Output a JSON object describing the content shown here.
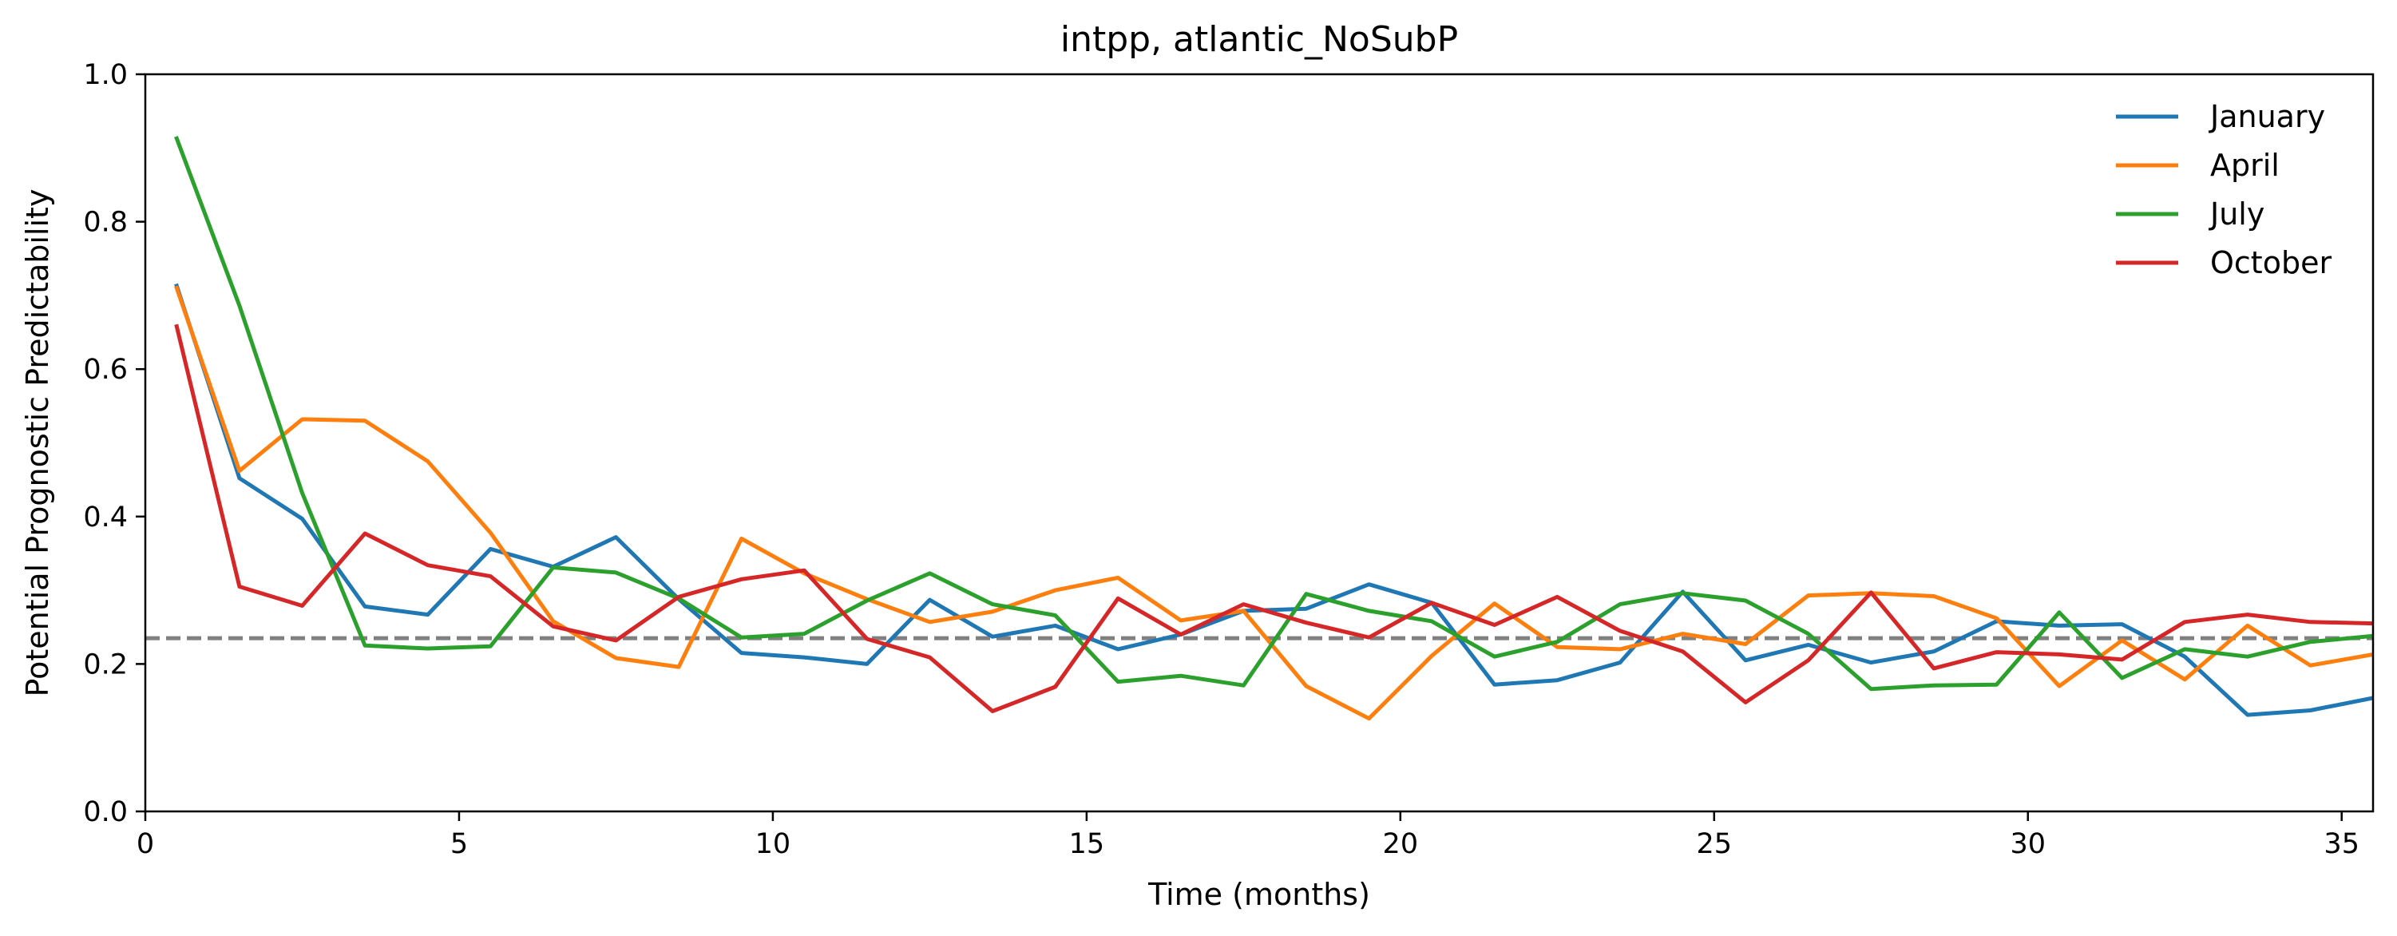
{
  "chart_data": {
    "type": "line",
    "title": "intpp, atlantic_NoSubP",
    "xlabel": "Time (months)",
    "ylabel": "Potential Prognostic Predictability",
    "xlim": [
      0,
      35.5
    ],
    "ylim": [
      0.0,
      1.0
    ],
    "xticks": [
      0,
      5,
      10,
      15,
      20,
      25,
      30,
      35
    ],
    "yticks": [
      0.0,
      0.2,
      0.4,
      0.6,
      0.8,
      1.0
    ],
    "xtick_labels": [
      "0",
      "5",
      "10",
      "15",
      "20",
      "25",
      "30",
      "35"
    ],
    "ytick_labels": [
      "0.0",
      "0.2",
      "0.4",
      "0.6",
      "0.8",
      "1.0"
    ],
    "grid": false,
    "legend_position": "top-right",
    "x": [
      0.5,
      1.5,
      2.5,
      3.5,
      4.5,
      5.5,
      6.5,
      7.5,
      8.5,
      9.5,
      10.5,
      11.5,
      12.5,
      13.5,
      14.5,
      15.5,
      16.5,
      17.5,
      18.5,
      19.5,
      20.5,
      21.5,
      22.5,
      23.5,
      24.5,
      25.5,
      26.5,
      27.5,
      28.5,
      29.5,
      30.5,
      31.5,
      32.5,
      33.5,
      34.5,
      35.5
    ],
    "reference_line": {
      "y": 0.235,
      "color": "#808080",
      "style": "dashed"
    },
    "series": [
      {
        "name": "January",
        "color": "#1f77b4",
        "values": [
          0.713,
          0.452,
          0.397,
          0.278,
          0.267,
          0.356,
          0.332,
          0.372,
          0.288,
          0.215,
          0.209,
          0.2,
          0.287,
          0.237,
          0.252,
          0.22,
          0.24,
          0.272,
          0.275,
          0.308,
          0.283,
          0.172,
          0.178,
          0.202,
          0.298,
          0.205,
          0.226,
          0.202,
          0.217,
          0.258,
          0.252,
          0.254,
          0.21,
          0.131,
          0.137,
          0.154
        ]
      },
      {
        "name": "April",
        "color": "#ff7f0e",
        "values": [
          0.71,
          0.462,
          0.532,
          0.53,
          0.475,
          0.378,
          0.258,
          0.208,
          0.196,
          0.37,
          0.323,
          0.288,
          0.257,
          0.271,
          0.3,
          0.317,
          0.259,
          0.272,
          0.17,
          0.126,
          0.211,
          0.282,
          0.223,
          0.22,
          0.241,
          0.227,
          0.293,
          0.296,
          0.292,
          0.262,
          0.17,
          0.232,
          0.179,
          0.252,
          0.198,
          0.213
        ]
      },
      {
        "name": "July",
        "color": "#2ca02c",
        "values": [
          0.913,
          0.686,
          0.432,
          0.225,
          0.221,
          0.224,
          0.331,
          0.324,
          0.289,
          0.236,
          0.241,
          0.286,
          0.323,
          0.281,
          0.266,
          0.176,
          0.184,
          0.171,
          0.295,
          0.272,
          0.258,
          0.21,
          0.23,
          0.281,
          0.296,
          0.286,
          0.241,
          0.166,
          0.171,
          0.172,
          0.27,
          0.181,
          0.22,
          0.21,
          0.23,
          0.238
        ]
      },
      {
        "name": "October",
        "color": "#d62728",
        "values": [
          0.658,
          0.305,
          0.279,
          0.377,
          0.334,
          0.319,
          0.251,
          0.232,
          0.291,
          0.315,
          0.327,
          0.234,
          0.209,
          0.136,
          0.169,
          0.289,
          0.24,
          0.281,
          0.256,
          0.236,
          0.283,
          0.253,
          0.291,
          0.245,
          0.217,
          0.148,
          0.205,
          0.297,
          0.194,
          0.216,
          0.213,
          0.206,
          0.257,
          0.267,
          0.257,
          0.255
        ]
      }
    ]
  }
}
